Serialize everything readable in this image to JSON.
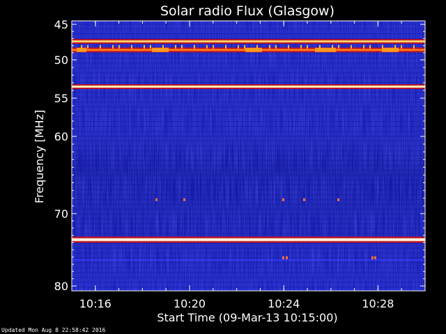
{
  "chart_data": {
    "type": "heatmap",
    "title": "Solar radio Flux (Glasgow)",
    "xlabel": "Start Time (09-Mar-13 10:15:00)",
    "ylabel": "Frequency [MHz]",
    "x_ticks": [
      "10:16",
      "10:20",
      "10:24",
      "10:28"
    ],
    "y_ticks": [
      45,
      50,
      55,
      60,
      70,
      80
    ],
    "x_range": [
      "10:15:00",
      "10:30:00"
    ],
    "y_range": [
      45,
      80
    ],
    "background_color": "#1e24c8",
    "bands": [
      {
        "freq_mhz": 47.4,
        "intensity": "high",
        "color": "#ffcc66"
      },
      {
        "freq_mhz": 48.6,
        "intensity": "high",
        "color": "#ff7a1a"
      },
      {
        "freq_mhz": 53.5,
        "intensity": "high",
        "color": "#fff1b0"
      },
      {
        "freq_mhz": 73.6,
        "intensity": "very high",
        "color": "#fffbe0"
      },
      {
        "freq_mhz": 76.4,
        "intensity": "low",
        "color": "#3a3aff"
      }
    ]
  },
  "footer": {
    "updated": "Updated Mon Aug  8 22:58:42 2016"
  }
}
